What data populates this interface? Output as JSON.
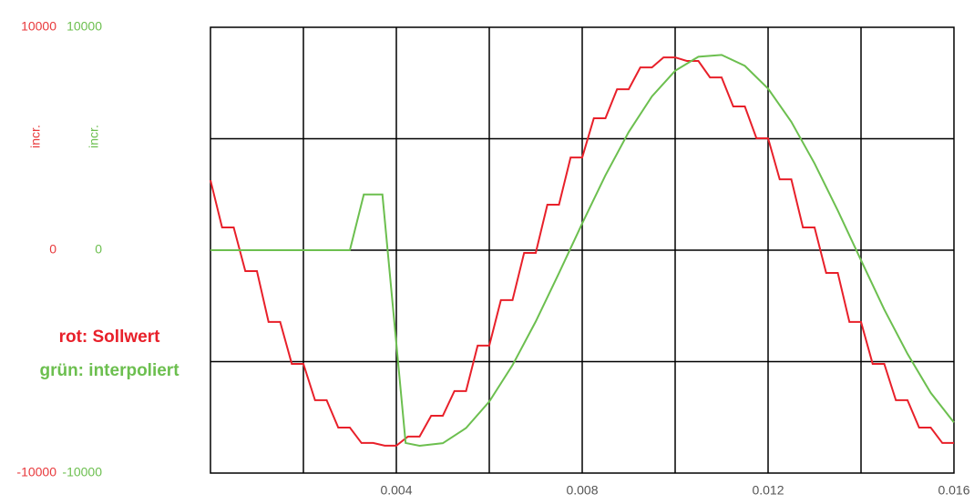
{
  "chart_data": {
    "type": "line",
    "x": [
      0,
      0.00025,
      0.0005,
      0.00075,
      0.001,
      0.00125,
      0.0015,
      0.00175,
      0.002,
      0.00225,
      0.0025,
      0.00275,
      0.003,
      0.00325,
      0.0035,
      0.00375,
      0.004,
      0.00425,
      0.0045,
      0.00475,
      0.005,
      0.00525,
      0.0055,
      0.00575,
      0.006,
      0.00625,
      0.0065,
      0.00675,
      0.007,
      0.00725,
      0.0075,
      0.00775,
      0.008,
      0.00825,
      0.0085,
      0.00875,
      0.009,
      0.00925,
      0.0095,
      0.00975,
      0.01,
      0.01025,
      0.0105,
      0.01075,
      0.011,
      0.01125,
      0.0115,
      0.01175,
      0.012,
      0.01225,
      0.0125,
      0.01275,
      0.013,
      0.01325,
      0.0135,
      0.01375,
      0.014,
      0.01425,
      0.0145,
      0.01475,
      0.015,
      0.01525,
      0.0155,
      0.01575,
      0.016
    ],
    "series": [
      {
        "name": "rot: Sollwert",
        "color": "#e8202a",
        "values": [
          3140,
          1020,
          1020,
          -940,
          -940,
          -3220,
          -3220,
          -5100,
          -5100,
          -6730,
          -6730,
          -7960,
          -7960,
          -8650,
          -8650,
          -8770,
          -8770,
          -8360,
          -8360,
          -7430,
          -7430,
          -6320,
          -6320,
          -4280,
          -4280,
          -2240,
          -2240,
          -120,
          -120,
          2040,
          2040,
          4160,
          4160,
          5920,
          5920,
          7220,
          7220,
          8200,
          8200,
          8650,
          8650,
          8490,
          8490,
          7750,
          7750,
          6450,
          6450,
          5020,
          5020,
          3180,
          3180,
          1020,
          1020,
          -1020,
          -1020,
          -3220,
          -3220,
          -5100,
          -5100,
          -6730,
          -6730,
          -7960,
          -7960,
          -8650,
          -8650
        ]
      },
      {
        "name": "grün: interpoliert",
        "color": "#6cbf4f",
        "axis": "y2",
        "x": [
          0,
          0.003,
          0.0033,
          0.0037,
          0.0042,
          0.0045,
          0.005,
          0.0055,
          0.006,
          0.0065,
          0.007,
          0.0075,
          0.008,
          0.0085,
          0.009,
          0.0095,
          0.01,
          0.0105,
          0.011,
          0.0115,
          0.012,
          0.0125,
          0.013,
          0.0135,
          0.014,
          0.0145,
          0.015,
          0.0155,
          0.016
        ],
        "values": [
          0,
          0,
          2500,
          2500,
          -8650,
          -8775,
          -8660,
          -7980,
          -6790,
          -5160,
          -3200,
          -1030,
          1200,
          3360,
          5300,
          6900,
          8050,
          8680,
          8760,
          8270,
          7250,
          5760,
          3890,
          1780,
          -450,
          -2660,
          -4650,
          -6400,
          -7730
        ]
      }
    ],
    "xlim": [
      0,
      0.016
    ],
    "xticks": [
      0.004,
      0.008,
      0.012,
      0.016
    ],
    "xgrid": [
      0.002,
      0.004,
      0.006,
      0.008,
      0.01,
      0.012,
      0.014
    ],
    "ylim": [
      -10000,
      10000
    ],
    "yticks": [
      -10000,
      0,
      10000
    ],
    "ylabel": "incr.",
    "ycolor": "#e8393c",
    "y2lim": [
      -10000,
      10000
    ],
    "y2ticks": [
      -10000,
      0,
      10000
    ],
    "y2label": "incr.",
    "y2color": "#6cbf4f",
    "ygrid": [
      -5000,
      0,
      5000
    ],
    "grid": true
  }
}
